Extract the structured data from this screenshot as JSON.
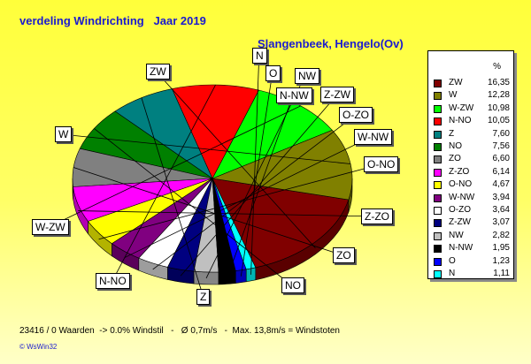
{
  "title": "verdeling Windrichting   Jaar 2019",
  "subtitle": "Slangenbeek, Hengelo(Ov)",
  "footer": "23416 / 0 Waarden  -> 0.0% Windstil   -   Ø 0,7m/s   -  Max. 13,8m/s = Windstoten",
  "copyright": "© WsWin32",
  "chart_data": {
    "type": "pie",
    "legend_header": "%",
    "legend_position": "right",
    "slices": [
      {
        "label": "ZW",
        "value_text": "16,35",
        "value": 16.35,
        "color": "#800000"
      },
      {
        "label": "W",
        "value_text": "12,28",
        "value": 12.28,
        "color": "#808000"
      },
      {
        "label": "W-ZW",
        "value_text": "10,98",
        "value": 10.98,
        "color": "#00ff00"
      },
      {
        "label": "N-NO",
        "value_text": "10,05",
        "value": 10.05,
        "color": "#ff0000"
      },
      {
        "label": "Z",
        "value_text": "7,60",
        "value": 7.6,
        "color": "#008080"
      },
      {
        "label": "NO",
        "value_text": "7,56",
        "value": 7.56,
        "color": "#008000"
      },
      {
        "label": "ZO",
        "value_text": "6,60",
        "value": 6.6,
        "color": "#808080"
      },
      {
        "label": "Z-ZO",
        "value_text": "6,14",
        "value": 6.14,
        "color": "#ff00ff"
      },
      {
        "label": "O-NO",
        "value_text": "4,67",
        "value": 4.67,
        "color": "#ffff00"
      },
      {
        "label": "W-NW",
        "value_text": "3,94",
        "value": 3.94,
        "color": "#800080"
      },
      {
        "label": "O-ZO",
        "value_text": "3,64",
        "value": 3.64,
        "color": "#ffffff"
      },
      {
        "label": "Z-ZW",
        "value_text": "3,07",
        "value": 3.07,
        "color": "#000080"
      },
      {
        "label": "NW",
        "value_text": "2,82",
        "value": 2.82,
        "color": "#c0c0c0"
      },
      {
        "label": "N-NW",
        "value_text": "1,95",
        "value": 1.95,
        "color": "#000000"
      },
      {
        "label": "O",
        "value_text": "1,23",
        "value": 1.23,
        "color": "#0000ff"
      },
      {
        "label": "N",
        "value_text": "1,11",
        "value": 1.11,
        "color": "#00ffff"
      }
    ]
  }
}
